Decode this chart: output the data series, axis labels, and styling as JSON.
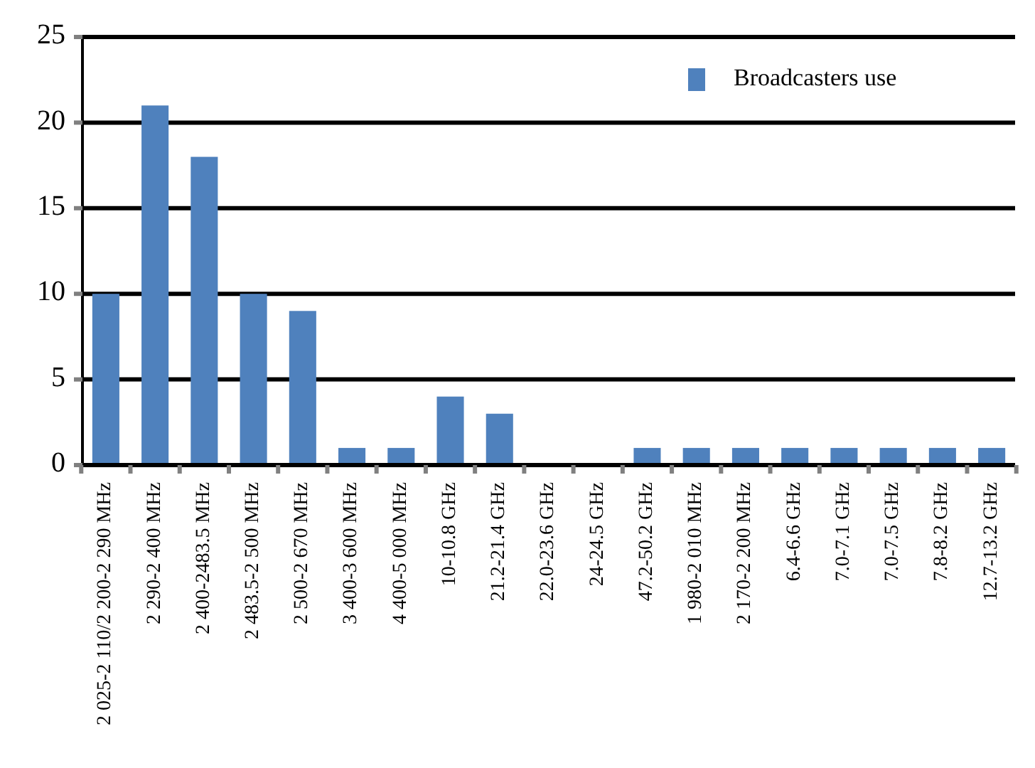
{
  "chart_data": {
    "type": "bar",
    "categories": [
      "2 025-2 110/2 200-2 290 MHz",
      "2 290-2 400 MHz",
      "2 400-2483.5 MHz",
      "2 483.5-2 500 MHz",
      "2 500-2 670 MHz",
      "3 400-3 600 MHz",
      "4 400-5 000 MHz",
      "10-10.8 GHz",
      "21.2-21.4 GHz",
      "22.0-23.6 GHz",
      "24-24.5 GHz",
      "47.2-50.2 GHz",
      "1 980-2 010 MHz",
      "2 170-2 200 MHz",
      "6.4-6.6 GHz",
      "7.0-7.1 GHz",
      "7.0-7.5 GHz",
      "7.8-8.2 GHz",
      "12.7-13.2 GHz"
    ],
    "series": [
      {
        "name": "Broadcasters use",
        "color": "#4f81bd",
        "values": [
          10,
          21,
          18,
          10,
          9,
          1,
          1,
          4,
          3,
          0,
          0,
          1,
          1,
          1,
          1,
          1,
          1,
          1,
          1
        ]
      }
    ],
    "ylim": [
      0,
      25
    ],
    "yticks": [
      0,
      5,
      10,
      15,
      20,
      25
    ],
    "grid": "y",
    "legend": "top right"
  }
}
